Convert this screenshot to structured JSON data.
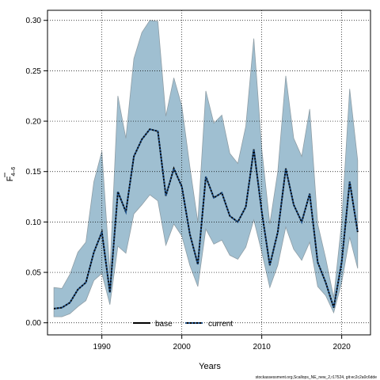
{
  "chart_data": {
    "type": "area",
    "xlabel": "Years",
    "ylabel": "F",
    "ylabel_sub": "4–6",
    "xlim": [
      1983.2,
      2023.6
    ],
    "ylim": [
      -0.012,
      0.31
    ],
    "x_ticks": [
      1990,
      2000,
      2010,
      2020
    ],
    "y_ticks": [
      0.0,
      0.05,
      0.1,
      0.15,
      0.2,
      0.25,
      0.3
    ],
    "y_tick_labels": [
      "0.00",
      "0.05",
      "0.10",
      "0.15",
      "0.20",
      "0.25",
      "0.30"
    ],
    "grid": true,
    "legend": {
      "position": "bottom-center",
      "entries": [
        {
          "label": "base",
          "style": "solid"
        },
        {
          "label": "current",
          "style": "dotted"
        }
      ]
    },
    "colors": {
      "band_fill": "#9fbfd1",
      "band_stroke": "#8f9ea6",
      "line": "#000000",
      "current_dash": "#1b4f8a"
    },
    "x": [
      1984,
      1985,
      1986,
      1987,
      1988,
      1989,
      1990,
      1991,
      1992,
      1993,
      1994,
      1995,
      1996,
      1997,
      1998,
      1999,
      2000,
      2001,
      2002,
      2003,
      2004,
      2005,
      2006,
      2007,
      2008,
      2009,
      2010,
      2011,
      2012,
      2013,
      2014,
      2015,
      2016,
      2017,
      2018,
      2019,
      2020,
      2021,
      2022
    ],
    "series": [
      {
        "name": "current",
        "values": [
          0.014,
          0.015,
          0.02,
          0.033,
          0.04,
          0.07,
          0.09,
          0.03,
          0.13,
          0.11,
          0.165,
          0.182,
          0.192,
          0.19,
          0.126,
          0.153,
          0.135,
          0.088,
          0.058,
          0.145,
          0.124,
          0.129,
          0.106,
          0.1,
          0.115,
          0.172,
          0.11,
          0.057,
          0.09,
          0.153,
          0.117,
          0.1,
          0.128,
          0.06,
          0.04,
          0.015,
          0.06,
          0.14,
          0.09
        ]
      },
      {
        "name": "base",
        "values": [
          0.014,
          0.015,
          0.02,
          0.033,
          0.04,
          0.07,
          0.09,
          0.03,
          0.13,
          0.11,
          0.165,
          0.182,
          0.192,
          0.19,
          0.126,
          0.153,
          0.135,
          0.088,
          0.058,
          0.145,
          0.124,
          0.129,
          0.106,
          0.1,
          0.115,
          0.172,
          0.11,
          0.057,
          0.09,
          0.153,
          0.117,
          0.1,
          0.128,
          0.06,
          0.04,
          0.015,
          0.06,
          0.14,
          0.09
        ]
      }
    ],
    "band": {
      "lower": [
        0.006,
        0.006,
        0.009,
        0.016,
        0.022,
        0.042,
        0.049,
        0.018,
        0.076,
        0.069,
        0.108,
        0.117,
        0.127,
        0.121,
        0.077,
        0.098,
        0.086,
        0.057,
        0.036,
        0.093,
        0.078,
        0.082,
        0.067,
        0.063,
        0.075,
        0.102,
        0.07,
        0.035,
        0.057,
        0.095,
        0.073,
        0.062,
        0.08,
        0.036,
        0.027,
        0.01,
        0.04,
        0.085,
        0.054
      ],
      "upper": [
        0.035,
        0.034,
        0.048,
        0.07,
        0.08,
        0.14,
        0.17,
        0.05,
        0.225,
        0.183,
        0.262,
        0.288,
        0.3,
        0.299,
        0.205,
        0.243,
        0.215,
        0.155,
        0.1,
        0.23,
        0.198,
        0.206,
        0.168,
        0.158,
        0.195,
        0.282,
        0.172,
        0.098,
        0.15,
        0.245,
        0.183,
        0.165,
        0.212,
        0.098,
        0.064,
        0.025,
        0.1,
        0.232,
        0.161
      ]
    }
  },
  "footer": {
    "credit": "stockassessment.org,Scallops_NE_new_2,r17524, git:ec2c2a0c6dde"
  }
}
